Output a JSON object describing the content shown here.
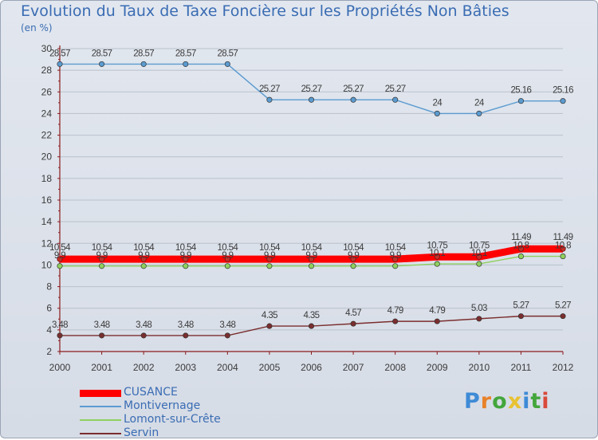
{
  "title": "Evolution du Taux de Taxe Foncière sur les Propriétés Non Bâties",
  "unit_label": "(en %)",
  "logo": {
    "text": "Proxiti",
    "letter_colors": [
      "#3e8bd6",
      "#e8822a",
      "#44a63c",
      "#e8c232",
      "#3e8bd6",
      "#44a63c",
      "#d94a3a"
    ]
  },
  "colors": {
    "background": "#dde3eb",
    "axis": "#8a1b1b",
    "grid": "#b9c1cc",
    "label": "#3b3b3b"
  },
  "chart_data": {
    "type": "line",
    "title": "Evolution du Taux de Taxe Foncière sur les Propriétés Non Bâties",
    "ylabel": "(en %)",
    "xlabel": "",
    "x": [
      "2000",
      "2001",
      "2002",
      "2003",
      "2004",
      "2005",
      "2006",
      "2007",
      "2008",
      "2009",
      "2010",
      "2011",
      "2012"
    ],
    "ylim": [
      2,
      30
    ],
    "yticks": [
      2,
      4,
      6,
      8,
      10,
      12,
      14,
      16,
      18,
      20,
      22,
      24,
      26,
      28,
      30
    ],
    "grid": "horizontal",
    "legend_position": "bottom-left",
    "series": [
      {
        "name": "CUSANCE",
        "color": "#ff0000",
        "style": "thick",
        "values": [
          10.54,
          10.54,
          10.54,
          10.54,
          10.54,
          10.54,
          10.54,
          10.54,
          10.54,
          10.75,
          10.75,
          11.49,
          11.49
        ],
        "labels": [
          "10.54",
          "10.54",
          "10.54",
          "10.54",
          "10.54",
          "10.54",
          "10.54",
          "10.54",
          "10.54",
          "10.75",
          "10.75",
          "11.49",
          "11.49"
        ]
      },
      {
        "name": "Montivernage",
        "color": "#5b9bd0",
        "style": "normal",
        "values": [
          28.57,
          28.57,
          28.57,
          28.57,
          28.57,
          25.27,
          25.27,
          25.27,
          25.27,
          24,
          24,
          25.16,
          25.16
        ],
        "labels": [
          "28.57",
          "28.57",
          "28.57",
          "28.57",
          "28.57",
          "25.27",
          "25.27",
          "25.27",
          "25.27",
          "24",
          "24",
          "25.16",
          "25.16"
        ]
      },
      {
        "name": "Lomont-sur-Crête",
        "color": "#8fd05e",
        "style": "normal",
        "values": [
          9.9,
          9.9,
          9.9,
          9.9,
          9.9,
          9.9,
          9.9,
          9.9,
          9.9,
          10.1,
          10.1,
          10.8,
          10.8
        ],
        "labels": [
          "9.9",
          "9.9",
          "9.9",
          "9.9",
          "9.9",
          "9.9",
          "9.9",
          "9.9",
          "9.9",
          "10.1",
          "10.1",
          "10.8",
          "10.8"
        ]
      },
      {
        "name": "Servin",
        "color": "#7a2e2e",
        "style": "normal",
        "values": [
          3.48,
          3.48,
          3.48,
          3.48,
          3.48,
          4.35,
          4.35,
          4.57,
          4.79,
          4.79,
          5.03,
          5.27,
          5.27
        ],
        "labels": [
          "3.48",
          "3.48",
          "3.48",
          "3.48",
          "3.48",
          "4.35",
          "4.35",
          "4.57",
          "4.79",
          "4.79",
          "5.03",
          "5.27",
          "5.27"
        ]
      }
    ]
  }
}
